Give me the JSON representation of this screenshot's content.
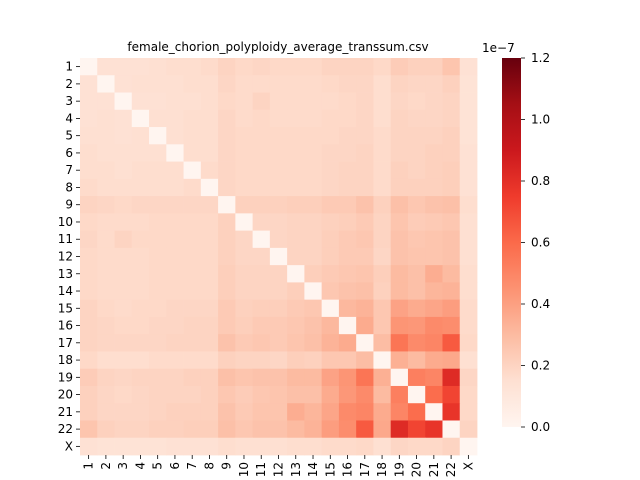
{
  "chart_data": {
    "type": "heatmap",
    "title": "female_chorion_polyploidy_average_transsum.csv",
    "xlabel": "",
    "ylabel": "",
    "labels": [
      "1",
      "2",
      "3",
      "4",
      "5",
      "6",
      "7",
      "8",
      "9",
      "10",
      "11",
      "12",
      "13",
      "14",
      "15",
      "16",
      "17",
      "18",
      "19",
      "20",
      "21",
      "22",
      "X"
    ],
    "colorbar": {
      "colormap": "Reds",
      "min": 0.0,
      "max": 1.2e-07,
      "ticks": [
        "0.0",
        "0.2",
        "0.4",
        "0.6",
        "0.8",
        "1.0",
        "1.2"
      ],
      "offset_text": "1e−7"
    },
    "values_unit": "1e-7",
    "matrix": [
      [
        0.0,
        0.14,
        0.14,
        0.14,
        0.15,
        0.16,
        0.16,
        0.17,
        0.2,
        0.18,
        0.19,
        0.18,
        0.18,
        0.18,
        0.2,
        0.2,
        0.2,
        0.18,
        0.23,
        0.21,
        0.21,
        0.26,
        0.14
      ],
      [
        0.14,
        0.0,
        0.14,
        0.15,
        0.15,
        0.15,
        0.16,
        0.16,
        0.19,
        0.17,
        0.17,
        0.17,
        0.17,
        0.17,
        0.18,
        0.19,
        0.19,
        0.16,
        0.2,
        0.19,
        0.19,
        0.21,
        0.13
      ],
      [
        0.14,
        0.14,
        0.0,
        0.14,
        0.14,
        0.15,
        0.15,
        0.16,
        0.18,
        0.17,
        0.2,
        0.17,
        0.17,
        0.17,
        0.17,
        0.18,
        0.19,
        0.16,
        0.19,
        0.18,
        0.19,
        0.2,
        0.13
      ],
      [
        0.14,
        0.15,
        0.14,
        0.0,
        0.15,
        0.15,
        0.16,
        0.16,
        0.19,
        0.17,
        0.18,
        0.17,
        0.17,
        0.17,
        0.18,
        0.18,
        0.19,
        0.16,
        0.2,
        0.19,
        0.19,
        0.2,
        0.13
      ],
      [
        0.15,
        0.15,
        0.14,
        0.15,
        0.0,
        0.15,
        0.16,
        0.16,
        0.19,
        0.18,
        0.18,
        0.18,
        0.18,
        0.18,
        0.18,
        0.19,
        0.19,
        0.17,
        0.2,
        0.2,
        0.2,
        0.21,
        0.13
      ],
      [
        0.16,
        0.15,
        0.15,
        0.15,
        0.15,
        0.0,
        0.16,
        0.16,
        0.19,
        0.18,
        0.18,
        0.18,
        0.18,
        0.18,
        0.19,
        0.19,
        0.2,
        0.17,
        0.2,
        0.2,
        0.21,
        0.21,
        0.14
      ],
      [
        0.16,
        0.16,
        0.15,
        0.16,
        0.16,
        0.16,
        0.0,
        0.17,
        0.19,
        0.18,
        0.18,
        0.18,
        0.18,
        0.18,
        0.19,
        0.2,
        0.2,
        0.17,
        0.21,
        0.2,
        0.21,
        0.22,
        0.14
      ],
      [
        0.17,
        0.16,
        0.16,
        0.16,
        0.16,
        0.16,
        0.17,
        0.0,
        0.19,
        0.18,
        0.18,
        0.18,
        0.18,
        0.18,
        0.19,
        0.2,
        0.2,
        0.17,
        0.21,
        0.21,
        0.21,
        0.22,
        0.14
      ],
      [
        0.2,
        0.19,
        0.18,
        0.19,
        0.19,
        0.19,
        0.19,
        0.19,
        0.0,
        0.21,
        0.21,
        0.21,
        0.22,
        0.22,
        0.24,
        0.24,
        0.27,
        0.21,
        0.28,
        0.25,
        0.27,
        0.28,
        0.16
      ],
      [
        0.18,
        0.17,
        0.17,
        0.17,
        0.18,
        0.18,
        0.18,
        0.18,
        0.21,
        0.0,
        0.19,
        0.19,
        0.2,
        0.2,
        0.21,
        0.22,
        0.24,
        0.2,
        0.26,
        0.23,
        0.24,
        0.25,
        0.15
      ],
      [
        0.19,
        0.17,
        0.2,
        0.18,
        0.18,
        0.18,
        0.18,
        0.18,
        0.21,
        0.19,
        0.0,
        0.19,
        0.2,
        0.2,
        0.22,
        0.24,
        0.25,
        0.2,
        0.27,
        0.25,
        0.26,
        0.27,
        0.15
      ],
      [
        0.18,
        0.17,
        0.17,
        0.17,
        0.18,
        0.18,
        0.18,
        0.18,
        0.21,
        0.19,
        0.19,
        0.0,
        0.2,
        0.2,
        0.22,
        0.24,
        0.24,
        0.19,
        0.27,
        0.26,
        0.26,
        0.27,
        0.15
      ],
      [
        0.18,
        0.17,
        0.17,
        0.17,
        0.18,
        0.18,
        0.18,
        0.18,
        0.22,
        0.2,
        0.2,
        0.2,
        0.0,
        0.22,
        0.24,
        0.25,
        0.26,
        0.22,
        0.3,
        0.28,
        0.35,
        0.3,
        0.16
      ],
      [
        0.18,
        0.17,
        0.17,
        0.17,
        0.18,
        0.18,
        0.18,
        0.18,
        0.22,
        0.2,
        0.2,
        0.2,
        0.22,
        0.0,
        0.25,
        0.27,
        0.28,
        0.21,
        0.3,
        0.28,
        0.32,
        0.33,
        0.16
      ],
      [
        0.2,
        0.18,
        0.17,
        0.18,
        0.18,
        0.19,
        0.19,
        0.19,
        0.24,
        0.21,
        0.22,
        0.22,
        0.24,
        0.25,
        0.0,
        0.31,
        0.33,
        0.25,
        0.39,
        0.36,
        0.38,
        0.41,
        0.17
      ],
      [
        0.2,
        0.19,
        0.18,
        0.18,
        0.19,
        0.19,
        0.2,
        0.2,
        0.24,
        0.22,
        0.24,
        0.24,
        0.25,
        0.27,
        0.31,
        0.0,
        0.36,
        0.25,
        0.44,
        0.43,
        0.48,
        0.47,
        0.17
      ],
      [
        0.2,
        0.19,
        0.19,
        0.19,
        0.19,
        0.2,
        0.2,
        0.2,
        0.27,
        0.24,
        0.25,
        0.24,
        0.26,
        0.28,
        0.33,
        0.36,
        0.0,
        0.29,
        0.56,
        0.48,
        0.5,
        0.65,
        0.18
      ],
      [
        0.18,
        0.16,
        0.16,
        0.16,
        0.17,
        0.17,
        0.17,
        0.17,
        0.21,
        0.2,
        0.2,
        0.19,
        0.22,
        0.21,
        0.25,
        0.25,
        0.29,
        0.0,
        0.34,
        0.3,
        0.36,
        0.37,
        0.15
      ],
      [
        0.23,
        0.2,
        0.19,
        0.2,
        0.2,
        0.2,
        0.21,
        0.21,
        0.28,
        0.26,
        0.27,
        0.27,
        0.3,
        0.3,
        0.39,
        0.44,
        0.56,
        0.34,
        0.0,
        0.52,
        0.5,
        0.82,
        0.19
      ],
      [
        0.21,
        0.19,
        0.18,
        0.19,
        0.2,
        0.2,
        0.2,
        0.21,
        0.25,
        0.23,
        0.25,
        0.26,
        0.28,
        0.28,
        0.36,
        0.43,
        0.48,
        0.3,
        0.52,
        0.0,
        0.59,
        0.72,
        0.18
      ],
      [
        0.21,
        0.19,
        0.19,
        0.19,
        0.2,
        0.21,
        0.21,
        0.21,
        0.27,
        0.24,
        0.26,
        0.26,
        0.35,
        0.32,
        0.38,
        0.48,
        0.5,
        0.36,
        0.5,
        0.59,
        0.0,
        0.78,
        0.18
      ],
      [
        0.26,
        0.21,
        0.2,
        0.2,
        0.21,
        0.21,
        0.22,
        0.22,
        0.28,
        0.25,
        0.27,
        0.27,
        0.3,
        0.33,
        0.41,
        0.47,
        0.65,
        0.37,
        0.82,
        0.72,
        0.78,
        0.0,
        0.2
      ],
      [
        0.14,
        0.13,
        0.13,
        0.13,
        0.13,
        0.14,
        0.14,
        0.14,
        0.16,
        0.15,
        0.15,
        0.15,
        0.16,
        0.16,
        0.17,
        0.17,
        0.18,
        0.15,
        0.19,
        0.18,
        0.18,
        0.2,
        0.0
      ]
    ]
  }
}
